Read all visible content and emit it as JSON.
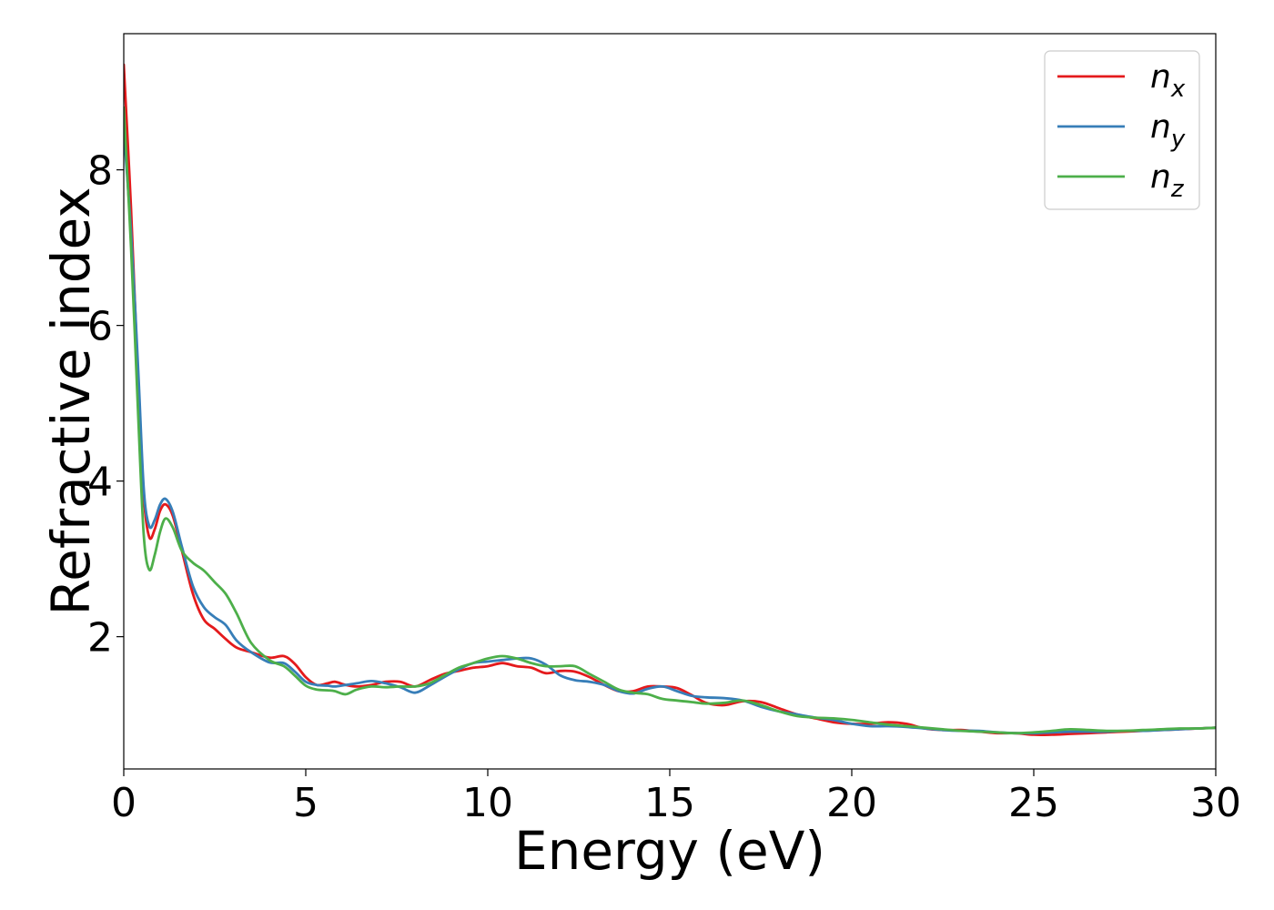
{
  "chart_data": {
    "type": "line",
    "xlabel": "Energy (eV)",
    "ylabel": "Refractive index",
    "xlim": [
      0,
      30
    ],
    "ylim": [
      0.3,
      9.75
    ],
    "xticks": [
      0,
      5,
      10,
      15,
      20,
      25,
      30
    ],
    "yticks": [
      2,
      4,
      6,
      8
    ],
    "grid": false,
    "legend_position": "top-right",
    "series": [
      {
        "name": "n_x",
        "label_main": "n",
        "label_sub": "x",
        "color": "#e41a1c",
        "x": [
          0,
          0.2,
          0.4,
          0.55,
          0.7,
          0.85,
          1.0,
          1.15,
          1.35,
          1.6,
          1.9,
          2.2,
          2.5,
          2.8,
          3.1,
          3.5,
          4.0,
          4.4,
          4.7,
          5.0,
          5.3,
          5.6,
          5.8,
          6.1,
          6.4,
          6.8,
          7.2,
          7.6,
          8.0,
          8.4,
          8.8,
          9.2,
          9.6,
          10.0,
          10.4,
          10.8,
          11.2,
          11.6,
          12.0,
          12.4,
          12.8,
          13.2,
          13.6,
          14.0,
          14.4,
          14.8,
          15.2,
          15.6,
          16.0,
          16.5,
          17.0,
          17.5,
          18.0,
          18.5,
          19.0,
          19.5,
          20.0,
          20.5,
          21.0,
          21.5,
          22.0,
          22.5,
          23.0,
          23.5,
          24.0,
          24.5,
          25.0,
          25.5,
          26.0,
          26.5,
          27.0,
          27.5,
          28.0,
          28.5,
          29.0,
          29.5,
          30.0
        ],
        "y": [
          9.35,
          7.5,
          5.2,
          3.8,
          3.28,
          3.38,
          3.62,
          3.7,
          3.55,
          3.1,
          2.55,
          2.22,
          2.1,
          1.97,
          1.86,
          1.8,
          1.73,
          1.75,
          1.65,
          1.48,
          1.38,
          1.4,
          1.42,
          1.38,
          1.36,
          1.38,
          1.42,
          1.42,
          1.36,
          1.44,
          1.52,
          1.56,
          1.6,
          1.62,
          1.66,
          1.62,
          1.6,
          1.53,
          1.56,
          1.55,
          1.48,
          1.38,
          1.3,
          1.3,
          1.36,
          1.36,
          1.34,
          1.25,
          1.15,
          1.12,
          1.17,
          1.16,
          1.08,
          1.0,
          0.95,
          0.9,
          0.88,
          0.88,
          0.9,
          0.88,
          0.82,
          0.8,
          0.8,
          0.78,
          0.76,
          0.76,
          0.74,
          0.74,
          0.75,
          0.76,
          0.77,
          0.78,
          0.79,
          0.8,
          0.81,
          0.82,
          0.83
        ]
      },
      {
        "name": "n_y",
        "label_main": "n",
        "label_sub": "y",
        "color": "#377eb8",
        "x": [
          0,
          0.2,
          0.4,
          0.55,
          0.7,
          0.85,
          1.0,
          1.15,
          1.35,
          1.6,
          1.9,
          2.2,
          2.5,
          2.8,
          3.1,
          3.5,
          4.0,
          4.4,
          4.7,
          5.0,
          5.3,
          5.6,
          5.8,
          6.1,
          6.4,
          6.8,
          7.2,
          7.6,
          8.0,
          8.4,
          8.8,
          9.2,
          9.6,
          10.0,
          10.4,
          10.8,
          11.2,
          11.6,
          12.0,
          12.4,
          12.8,
          13.2,
          13.6,
          14.0,
          14.4,
          14.8,
          15.2,
          15.6,
          16.0,
          16.5,
          17.0,
          17.5,
          18.0,
          18.5,
          19.0,
          19.5,
          20.0,
          20.5,
          21.0,
          21.5,
          22.0,
          22.5,
          23.0,
          23.5,
          24.0,
          24.5,
          25.0,
          25.5,
          26.0,
          26.5,
          27.0,
          27.5,
          28.0,
          28.5,
          29.0,
          29.5,
          30.0
        ],
        "y": [
          8.5,
          7.2,
          5.4,
          3.9,
          3.42,
          3.5,
          3.7,
          3.77,
          3.6,
          3.15,
          2.65,
          2.38,
          2.25,
          2.15,
          1.95,
          1.8,
          1.67,
          1.66,
          1.55,
          1.42,
          1.38,
          1.37,
          1.36,
          1.38,
          1.4,
          1.43,
          1.4,
          1.35,
          1.28,
          1.37,
          1.48,
          1.58,
          1.66,
          1.68,
          1.7,
          1.72,
          1.72,
          1.64,
          1.5,
          1.44,
          1.42,
          1.38,
          1.3,
          1.27,
          1.33,
          1.36,
          1.3,
          1.24,
          1.22,
          1.21,
          1.18,
          1.1,
          1.04,
          1.0,
          0.96,
          0.93,
          0.88,
          0.85,
          0.85,
          0.84,
          0.82,
          0.8,
          0.79,
          0.79,
          0.77,
          0.76,
          0.76,
          0.77,
          0.78,
          0.78,
          0.78,
          0.79,
          0.79,
          0.8,
          0.81,
          0.82,
          0.83
        ]
      },
      {
        "name": "n_z",
        "label_main": "n",
        "label_sub": "z",
        "color": "#4daf4a",
        "x": [
          0,
          0.2,
          0.4,
          0.55,
          0.7,
          0.85,
          1.0,
          1.15,
          1.35,
          1.6,
          1.9,
          2.2,
          2.5,
          2.8,
          3.1,
          3.5,
          4.0,
          4.4,
          4.7,
          5.0,
          5.3,
          5.6,
          5.8,
          6.1,
          6.4,
          6.8,
          7.2,
          7.6,
          8.0,
          8.4,
          8.8,
          9.2,
          9.6,
          10.0,
          10.4,
          10.8,
          11.2,
          11.6,
          12.0,
          12.4,
          12.8,
          13.2,
          13.6,
          14.0,
          14.4,
          14.8,
          15.2,
          15.6,
          16.0,
          16.5,
          17.0,
          17.5,
          18.0,
          18.5,
          19.0,
          19.5,
          20.0,
          20.5,
          21.0,
          21.5,
          22.0,
          22.5,
          23.0,
          23.5,
          24.0,
          24.5,
          25.0,
          25.5,
          26.0,
          26.5,
          27.0,
          27.5,
          28.0,
          28.5,
          29.0,
          29.5,
          30.0
        ],
        "y": [
          8.8,
          7.0,
          4.8,
          3.3,
          2.86,
          3.05,
          3.35,
          3.52,
          3.4,
          3.1,
          2.95,
          2.85,
          2.7,
          2.55,
          2.3,
          1.92,
          1.7,
          1.62,
          1.5,
          1.37,
          1.32,
          1.31,
          1.3,
          1.26,
          1.32,
          1.36,
          1.35,
          1.36,
          1.36,
          1.4,
          1.5,
          1.6,
          1.66,
          1.72,
          1.75,
          1.72,
          1.66,
          1.62,
          1.62,
          1.62,
          1.52,
          1.42,
          1.32,
          1.28,
          1.26,
          1.2,
          1.18,
          1.16,
          1.14,
          1.15,
          1.18,
          1.12,
          1.04,
          0.98,
          0.96,
          0.95,
          0.93,
          0.9,
          0.87,
          0.85,
          0.83,
          0.81,
          0.79,
          0.78,
          0.77,
          0.76,
          0.77,
          0.79,
          0.81,
          0.8,
          0.79,
          0.79,
          0.8,
          0.81,
          0.82,
          0.82,
          0.83
        ]
      }
    ]
  }
}
